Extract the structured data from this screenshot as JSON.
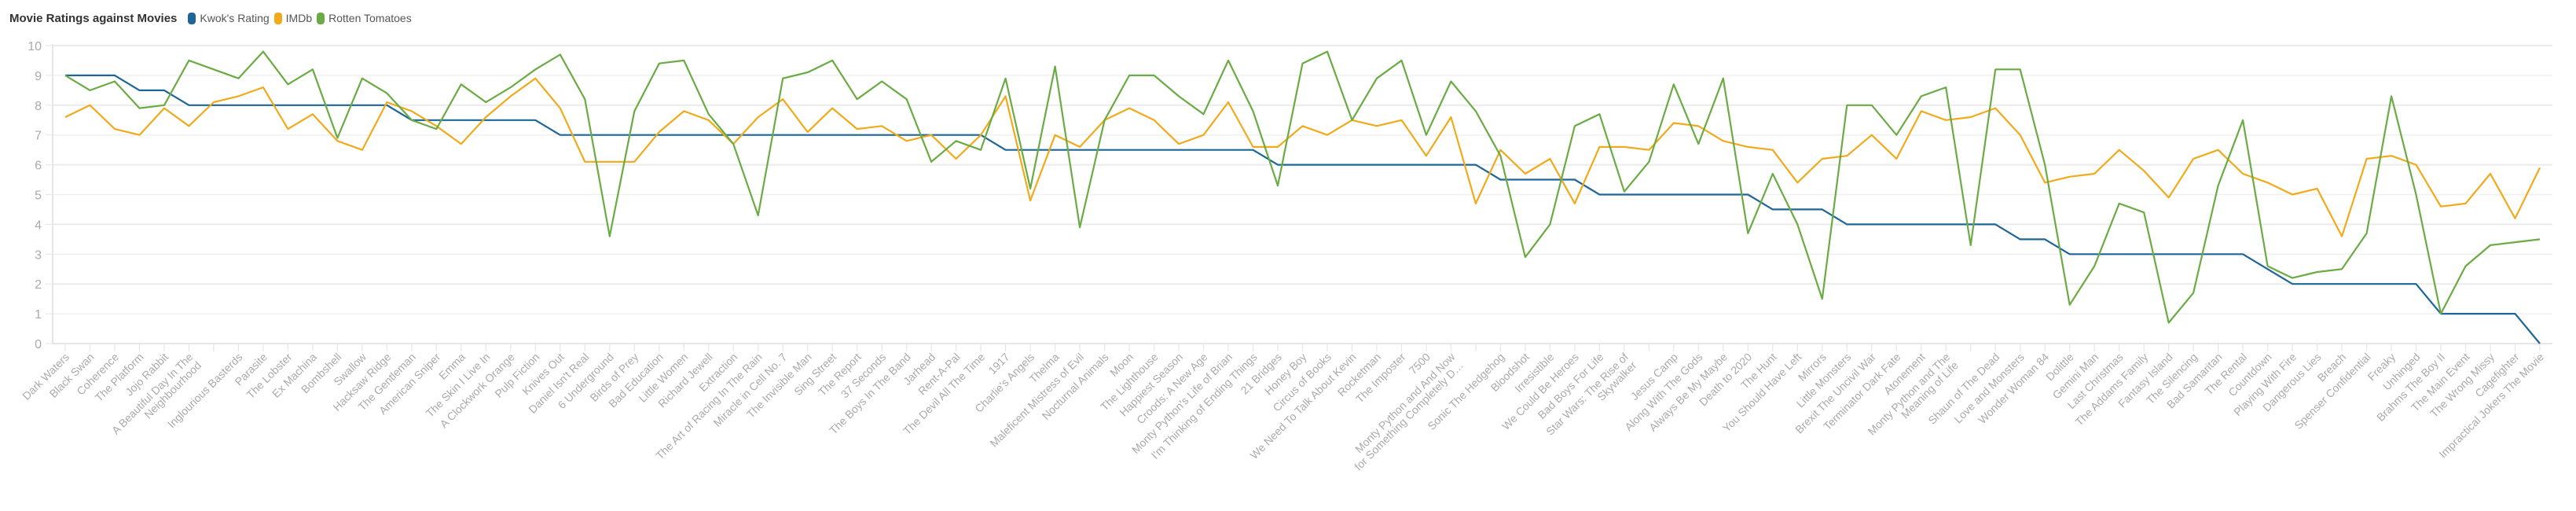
{
  "chart_data": {
    "type": "line",
    "title": "Movie Ratings against Movies",
    "xlabel": "",
    "ylabel": "",
    "ylim": [
      0,
      10
    ],
    "yticks": [
      "0",
      "1",
      "2",
      "3",
      "4",
      "5",
      "6",
      "7",
      "8",
      "9",
      "10"
    ],
    "grid": true,
    "legend_position": "top-left",
    "categories": [
      [
        "Dark Waters"
      ],
      [
        "Black Swan"
      ],
      [
        "Coherence"
      ],
      [
        "The Platform"
      ],
      [
        "Jojo Rabbit"
      ],
      [
        "A Beautiful Day In The",
        "Neighbourhood"
      ],
      [
        ""
      ],
      [
        "Inglourious Basterds"
      ],
      [
        "Parasite"
      ],
      [
        "The Lobster"
      ],
      [
        "Ex Machina"
      ],
      [
        "Bombshell"
      ],
      [
        "Swallow"
      ],
      [
        "Hacksaw Ridge"
      ],
      [
        "The Gentleman"
      ],
      [
        "American Sniper"
      ],
      [
        "Emma"
      ],
      [
        "The Skin I Live In"
      ],
      [
        "A Clockwork Orange"
      ],
      [
        "Pulp Fiction"
      ],
      [
        "Knives Out"
      ],
      [
        "Daniel Isn't Real"
      ],
      [
        "6 Underground"
      ],
      [
        "Birds of Prey"
      ],
      [
        "Bad Education"
      ],
      [
        "Little Women"
      ],
      [
        "Richard Jewell"
      ],
      [
        "Extraction"
      ],
      [
        "The Art of Racing In The Rain"
      ],
      [
        "Miracle in Cell No. 7"
      ],
      [
        "The Invisible Man"
      ],
      [
        "Sing Street"
      ],
      [
        "The Report"
      ],
      [
        "37 Seconds"
      ],
      [
        "The Boys In The Band"
      ],
      [
        "Jarhead"
      ],
      [
        "Rent-A-Pal"
      ],
      [
        "The Devil All The Time"
      ],
      [
        "1917"
      ],
      [
        "Charlie's Angels"
      ],
      [
        "Thelma"
      ],
      [
        "Maleficent Mistress of Evil"
      ],
      [
        "Nocturnal Animals"
      ],
      [
        "Moon"
      ],
      [
        "The Lighthouse"
      ],
      [
        "Happiest Season"
      ],
      [
        "Croods: A New Age"
      ],
      [
        "Monty Python's Life of Brian"
      ],
      [
        "I'm Thinking of Ending Things"
      ],
      [
        "21 Bridges"
      ],
      [
        "Honey Boy"
      ],
      [
        "Circus of Books"
      ],
      [
        "We Need To Talk About Kevin"
      ],
      [
        "Rocketman"
      ],
      [
        "The Imposter"
      ],
      [
        "7500"
      ],
      [
        "Monty Python and And Now",
        "for Something Completely D…"
      ],
      [
        ""
      ],
      [
        "Sonic The Hedgehog"
      ],
      [
        "Bloodshot"
      ],
      [
        "Irresistible"
      ],
      [
        "We Could Be Heroes"
      ],
      [
        "Bad Boys For Life"
      ],
      [
        "Star Wars: The Rise of",
        "Skywalker"
      ],
      [
        ""
      ],
      [
        "Jesus Camp"
      ],
      [
        "Along With The Gods"
      ],
      [
        "Always Be My Maybe"
      ],
      [
        "Death to 2020"
      ],
      [
        "The Hunt"
      ],
      [
        "You Should Have Left"
      ],
      [
        "Mirrors"
      ],
      [
        "Little Monsters"
      ],
      [
        "Brexit The Uncivil War"
      ],
      [
        "Terminator Dark Fate"
      ],
      [
        "Atonement"
      ],
      [
        "Monty Python and The",
        "Meaning of Life"
      ],
      [
        ""
      ],
      [
        "Shaun of The Dead"
      ],
      [
        "Love and Monsters"
      ],
      [
        "Wonder Woman 84"
      ],
      [
        "Dolittle"
      ],
      [
        "Gemini Man"
      ],
      [
        "Last Christmas"
      ],
      [
        "The Addams Family"
      ],
      [
        "Fantasy Island"
      ],
      [
        "The Silencing"
      ],
      [
        "Bad Samaritan"
      ],
      [
        "The Rental"
      ],
      [
        "Countdown"
      ],
      [
        "Playing With Fire"
      ],
      [
        "Dangerous Lies"
      ],
      [
        "Breach"
      ],
      [
        "Spenser Confidential"
      ],
      [
        "Freaky"
      ],
      [
        "Unhinged"
      ],
      [
        "Brahms The Boy II"
      ],
      [
        "The Main Event"
      ],
      [
        "The Wrong Missy"
      ],
      [
        "Cagefighter"
      ],
      [
        "Impractical Jokers The Movie"
      ]
    ],
    "series": [
      {
        "name": "Kwok's Rating",
        "color": "#1d6697",
        "values": [
          9,
          9,
          9,
          8.5,
          8.5,
          8,
          8,
          8,
          8,
          8,
          8,
          8,
          8,
          8,
          7.5,
          7.5,
          7.5,
          7.5,
          7.5,
          7.5,
          7,
          7,
          7,
          7,
          7,
          7,
          7,
          7,
          7,
          7,
          7,
          7,
          7,
          7,
          7,
          7,
          7,
          7,
          6.5,
          6.5,
          6.5,
          6.5,
          6.5,
          6.5,
          6.5,
          6.5,
          6.5,
          6.5,
          6.5,
          6,
          6,
          6,
          6,
          6,
          6,
          6,
          6,
          6,
          5.5,
          5.5,
          5.5,
          5.5,
          5,
          5,
          5,
          5,
          5,
          5,
          5,
          4.5,
          4.5,
          4.5,
          4,
          4,
          4,
          4,
          4,
          4,
          4,
          3.5,
          3.5,
          3,
          3,
          3,
          3,
          3,
          3,
          3,
          3,
          2.5,
          2,
          2,
          2,
          2,
          2,
          2,
          1,
          1,
          1,
          1,
          0
        ]
      },
      {
        "name": "IMDb",
        "color": "#f0aa1c",
        "values": [
          7.6,
          8.0,
          7.2,
          7.0,
          7.9,
          7.3,
          8.1,
          8.3,
          8.6,
          7.2,
          7.7,
          6.8,
          6.5,
          8.1,
          7.8,
          7.3,
          6.7,
          7.6,
          8.3,
          8.9,
          7.9,
          6.1,
          6.1,
          6.1,
          7.1,
          7.8,
          7.5,
          6.7,
          7.6,
          8.2,
          7.1,
          7.9,
          7.2,
          7.3,
          6.8,
          7.0,
          6.2,
          7.0,
          8.3,
          4.8,
          7.0,
          6.6,
          7.5,
          7.9,
          7.5,
          6.7,
          7.0,
          8.1,
          6.6,
          6.6,
          7.3,
          7.0,
          7.5,
          7.3,
          7.5,
          6.3,
          7.6,
          4.7,
          6.5,
          5.7,
          6.2,
          4.7,
          6.6,
          6.6,
          6.5,
          7.4,
          7.3,
          6.8,
          6.6,
          6.5,
          5.4,
          6.2,
          6.3,
          7.0,
          6.2,
          7.8,
          7.5,
          7.6,
          7.9,
          7.0,
          5.4,
          5.6,
          5.7,
          6.5,
          5.8,
          4.9,
          6.2,
          6.5,
          5.7,
          5.4,
          5.0,
          5.2,
          3.6,
          6.2,
          6.3,
          6.0,
          4.6,
          4.7,
          5.7,
          4.2,
          5.9
        ]
      },
      {
        "name": "Rotten Tomatoes",
        "color": "#6aab43",
        "values": [
          9.0,
          8.5,
          8.8,
          7.9,
          8.0,
          9.5,
          9.2,
          8.9,
          9.8,
          8.7,
          9.2,
          6.9,
          8.9,
          8.4,
          7.5,
          7.2,
          8.7,
          8.1,
          8.6,
          9.2,
          9.7,
          8.2,
          3.6,
          7.8,
          9.4,
          9.5,
          7.7,
          6.7,
          4.3,
          8.9,
          9.1,
          9.5,
          8.2,
          8.8,
          8.2,
          6.1,
          6.8,
          6.5,
          8.9,
          5.2,
          9.3,
          3.9,
          7.5,
          9.0,
          9.0,
          8.3,
          7.7,
          9.5,
          7.8,
          5.3,
          9.4,
          9.8,
          7.5,
          8.9,
          9.5,
          7.0,
          8.8,
          7.8,
          6.3,
          2.9,
          4.0,
          7.3,
          7.7,
          5.1,
          6.1,
          8.7,
          6.7,
          8.9,
          3.7,
          5.7,
          4.0,
          1.5,
          8.0,
          8.0,
          7.0,
          8.3,
          8.6,
          3.3,
          9.2,
          9.2,
          6.0,
          1.3,
          2.6,
          4.7,
          4.4,
          0.7,
          1.7,
          5.3,
          7.5,
          2.6,
          2.2,
          2.4,
          2.5,
          3.7,
          8.3,
          5.0,
          1.0,
          2.6,
          3.3,
          3.4,
          3.5
        ]
      }
    ]
  }
}
